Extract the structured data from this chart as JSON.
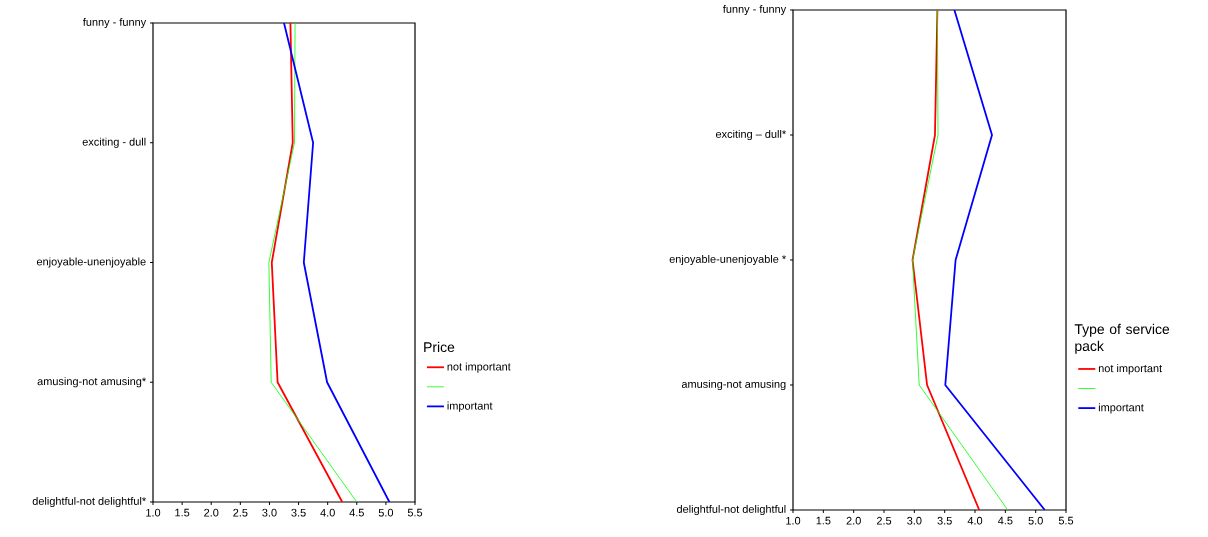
{
  "chart_data": [
    {
      "type": "line",
      "orientation": "horizontal",
      "legend_title": "Price",
      "legend": "right",
      "categories": [
        "funny - funny",
        "exciting - dull",
        "enjoyable-unenjoyable",
        "amusing-not amusing*",
        "delightful-not delightful*"
      ],
      "xlim": [
        1.0,
        5.5
      ],
      "xticks": [
        {
          "value": 1.0,
          "label": "1.0"
        },
        {
          "value": 1.5,
          "label": "1.5"
        },
        {
          "value": 2.0,
          "label": "2.0"
        },
        {
          "value": 2.5,
          "label": "2.5"
        },
        {
          "value": 3.0,
          "label": "3.0"
        },
        {
          "value": 3.5,
          "label": "3.5"
        },
        {
          "value": 4.0,
          "label": "4.0"
        },
        {
          "value": 4.5,
          "label": "4.5"
        },
        {
          "value": 5.0,
          "label": "5.0"
        },
        {
          "value": 5.5,
          "label": "5.5"
        }
      ],
      "series": [
        {
          "name": "not important",
          "color": "#ff0000",
          "values": [
            3.36,
            3.4,
            3.04,
            3.14,
            4.25
          ]
        },
        {
          "color": "#00ff00",
          "values": [
            3.44,
            3.43,
            2.99,
            3.03,
            4.5
          ]
        },
        {
          "name": "important",
          "color": "#0000ff",
          "values": [
            3.25,
            3.75,
            3.59,
            3.99,
            5.06
          ]
        }
      ]
    },
    {
      "type": "line",
      "orientation": "horizontal",
      "legend_title": "Type of service pack",
      "legend": "right",
      "categories": [
        "funny - funny",
        "exciting – dull*",
        "enjoyable-unenjoyable *",
        "amusing-not amusing",
        "delightful-not delightful"
      ],
      "xlim": [
        1.0,
        5.5
      ],
      "xticks": [
        {
          "value": 1.0,
          "label": "1.0"
        },
        {
          "value": 1.5,
          "label": "1.5"
        },
        {
          "value": 2.0,
          "label": "2.0"
        },
        {
          "value": 2.5,
          "label": "2.5"
        },
        {
          "value": 3.0,
          "label": "3.0"
        },
        {
          "value": 3.5,
          "label": "3.5"
        },
        {
          "value": 4.0,
          "label": "4.0"
        },
        {
          "value": 4.5,
          "label": "4.5"
        },
        {
          "value": 5.0,
          "label": "5.0"
        },
        {
          "value": 5.5,
          "label": "5.5"
        }
      ],
      "series": [
        {
          "name": "not important",
          "color": "#ff0000",
          "values": [
            3.38,
            3.34,
            2.97,
            3.21,
            4.07
          ]
        },
        {
          "color": "#00ff00",
          "values": [
            3.38,
            3.39,
            2.97,
            3.08,
            4.54
          ]
        },
        {
          "name": "important",
          "color": "#0000ff",
          "values": [
            3.66,
            4.28,
            3.68,
            3.51,
            5.15
          ]
        }
      ]
    }
  ]
}
